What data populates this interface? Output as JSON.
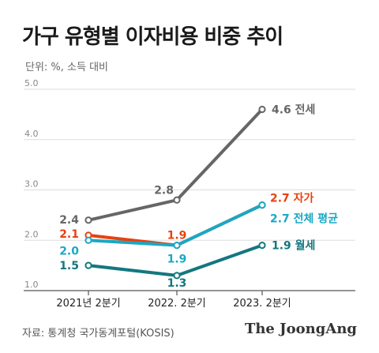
{
  "header": {
    "title": "가구 유형별 이자비용 비중 추이",
    "unit": "단위: %, 소득 대비"
  },
  "footer": {
    "source": "자료: 통계청 국가동계포털(KOSIS)",
    "brand": "The JoongAng"
  },
  "colors": {
    "gray": "#666666",
    "orange": "#e8410e",
    "cyan": "#1aa8c4",
    "teal": "#13777f",
    "grid": "#dddddd",
    "axis": "#555555"
  },
  "chart_data": {
    "type": "line",
    "categories": [
      "2021년 2분기",
      "2022. 2분기",
      "2023. 2분기"
    ],
    "y_ticks": [
      "5.0",
      "4.0",
      "3.0",
      "2.0",
      "1.0"
    ],
    "ylim": [
      1.0,
      5.0
    ],
    "grid": true,
    "series": [
      {
        "name": "전세",
        "color": "#666666",
        "values": [
          2.4,
          2.8,
          4.6
        ],
        "labels": [
          "2.4",
          "2.8",
          "4.6"
        ],
        "end_label": "전세"
      },
      {
        "name": "자가",
        "color": "#e8410e",
        "values": [
          2.1,
          1.9,
          2.7
        ],
        "labels": [
          "2.1",
          "1.9",
          "2.7"
        ],
        "end_label": "자가"
      },
      {
        "name": "전체 평균",
        "color": "#1aa8c4",
        "values": [
          2.0,
          1.9,
          2.7
        ],
        "labels": [
          "2.0",
          "1.9",
          "2.7"
        ],
        "end_label": "전체 평균"
      },
      {
        "name": "월세",
        "color": "#13777f",
        "values": [
          1.5,
          1.3,
          1.9
        ],
        "labels": [
          "1.5",
          "1.3",
          "1.9"
        ],
        "end_label": "월세"
      }
    ]
  }
}
